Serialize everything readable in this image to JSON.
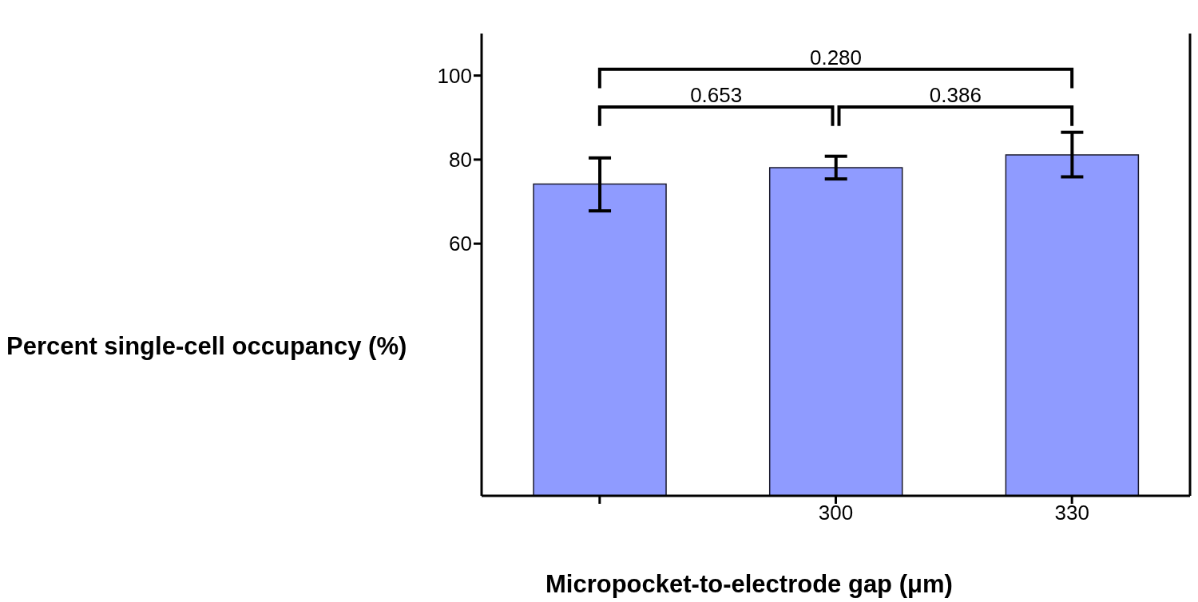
{
  "chart_data": {
    "type": "bar",
    "xlabel": "Micropocket-to-electrode gap (μm)",
    "ylabel": "Percent single-cell occupancy (%)",
    "categories": [
      null,
      "300",
      "330"
    ],
    "values": [
      74.2,
      78.1,
      81.1
    ],
    "errors": [
      [
        67.8,
        80.4
      ],
      [
        75.4,
        80.8
      ],
      [
        75.9,
        86.5
      ]
    ],
    "color": "#8f9bff",
    "ylim": [
      0,
      110
    ],
    "yticks": [
      60,
      80,
      100
    ],
    "annotations": [
      "0.280",
      "0.653",
      "0.386"
    ]
  }
}
